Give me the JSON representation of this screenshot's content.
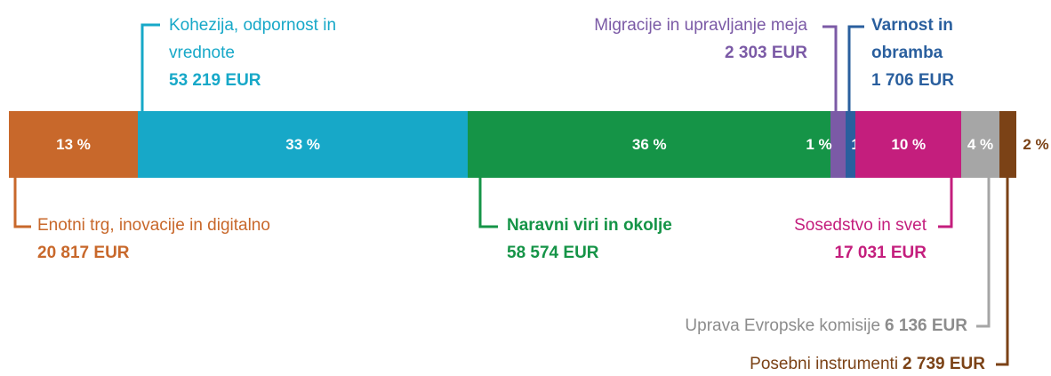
{
  "chart_data": {
    "type": "stacked-bar",
    "series": [
      {
        "name": "Enotni trg, inovacije in digitalno",
        "color": "#c8682b",
        "values": [
          20817
        ],
        "value_labels": [
          "20 817 EUR"
        ],
        "share": 13,
        "share_label": "13 %"
      },
      {
        "name": "Kohezija, odpornost in vrednote",
        "color": "#17a8c8",
        "values": [
          53219
        ],
        "value_labels": [
          "53 219 EUR"
        ],
        "share": 33,
        "share_label": "33 %"
      },
      {
        "name": "Naravni viri in okolje",
        "color": "#159447",
        "values": [
          58574
        ],
        "value_labels": [
          "58 574 EUR"
        ],
        "share": 36,
        "share_label": "36 %"
      },
      {
        "name": "Migracije in upravljanje meja",
        "color": "#7b5aa6",
        "values": [
          2303
        ],
        "value_labels": [
          "2 303 EUR"
        ],
        "share": 1,
        "share_label": "1 %"
      },
      {
        "name": "Varnost in obramba",
        "color": "#2a5f9e",
        "values": [
          1706
        ],
        "value_labels": [
          "1 706 EUR"
        ],
        "share": 1,
        "share_label": "1 %"
      },
      {
        "name": "Sosedstvo in svet",
        "color": "#c41e7d",
        "values": [
          17031
        ],
        "value_labels": [
          "17 031 EUR"
        ],
        "share": 10,
        "share_label": "10 %"
      },
      {
        "name": "Uprava Evropske komisije",
        "color": "#a6a6a6",
        "values": [
          6136
        ],
        "value_labels": [
          "6 136 EUR"
        ],
        "share": 4,
        "share_label": "4 %"
      },
      {
        "name": "Posebni instrumenti",
        "color": "#7b4216",
        "values": [
          2739
        ],
        "value_labels": [
          "2 739 EUR"
        ],
        "share": 2,
        "share_label": "2 %"
      }
    ]
  }
}
